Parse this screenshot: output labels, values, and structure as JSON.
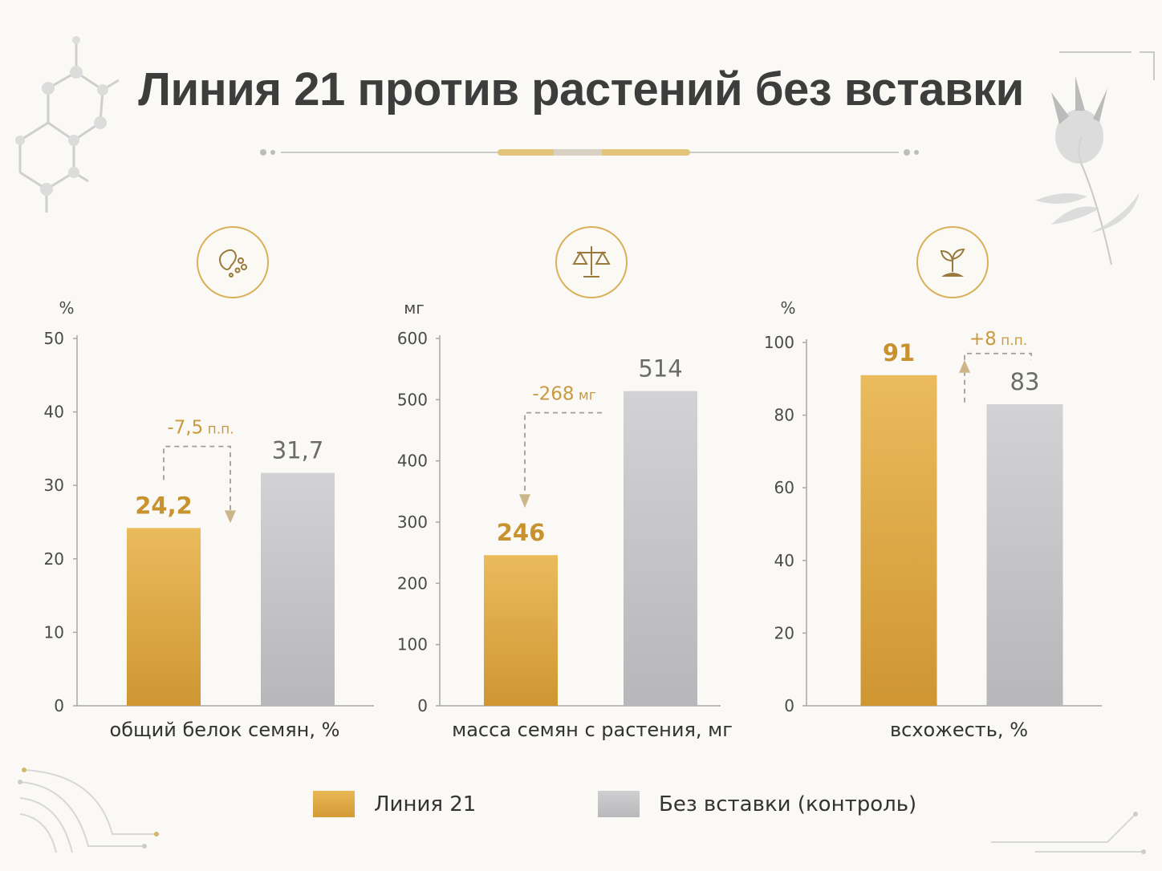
{
  "title": "Линия 21 против растений без вставки",
  "colors": {
    "gold": "#e0ac4a",
    "gold_dark": "#cf9632",
    "gray": "#c6c6c9",
    "delta": "#c99a3e",
    "axis": "#a8a8a8",
    "text": "#4a4a4a"
  },
  "icons": [
    "seed-icon",
    "scales-icon",
    "sprout-icon"
  ],
  "chart_data": [
    {
      "type": "bar",
      "categories": [
        "Линия 21",
        "Без вставки (контроль)"
      ],
      "values": [
        24.2,
        31.7
      ],
      "value_labels": [
        "24,2",
        "31,7"
      ],
      "ylabel": "%",
      "xlabel": "общий белок семян, %",
      "ylim": [
        0,
        50
      ],
      "yticks": [
        0,
        10,
        20,
        30,
        40,
        50
      ],
      "annotation": {
        "main": "-7,5",
        "unit": " п.п.",
        "direction": "down"
      }
    },
    {
      "type": "bar",
      "categories": [
        "Линия 21",
        "Без вставки (контроль)"
      ],
      "values": [
        246,
        514
      ],
      "value_labels": [
        "246",
        "514"
      ],
      "ylabel": "мг",
      "xlabel": "масса семян с растения, мг",
      "ylim": [
        0,
        600
      ],
      "yticks": [
        0,
        100,
        200,
        300,
        400,
        500,
        600
      ],
      "annotation": {
        "main": "-268",
        "unit": " мг",
        "direction": "down"
      }
    },
    {
      "type": "bar",
      "categories": [
        "Линия 21",
        "Без вставки (контроль)"
      ],
      "values": [
        91,
        83
      ],
      "value_labels": [
        "91",
        "83"
      ],
      "ylabel": "%",
      "xlabel": "всхожесть, %",
      "ylim": [
        0,
        100
      ],
      "yticks": [
        0,
        20,
        40,
        60,
        80,
        100
      ],
      "annotation": {
        "main": "+8",
        "unit": " п.п.",
        "direction": "up"
      }
    }
  ],
  "legend": [
    {
      "label": "Линия 21",
      "color": "#e0ac4a"
    },
    {
      "label": "Без вставки (контроль)",
      "color": "#c6c6c9"
    }
  ]
}
